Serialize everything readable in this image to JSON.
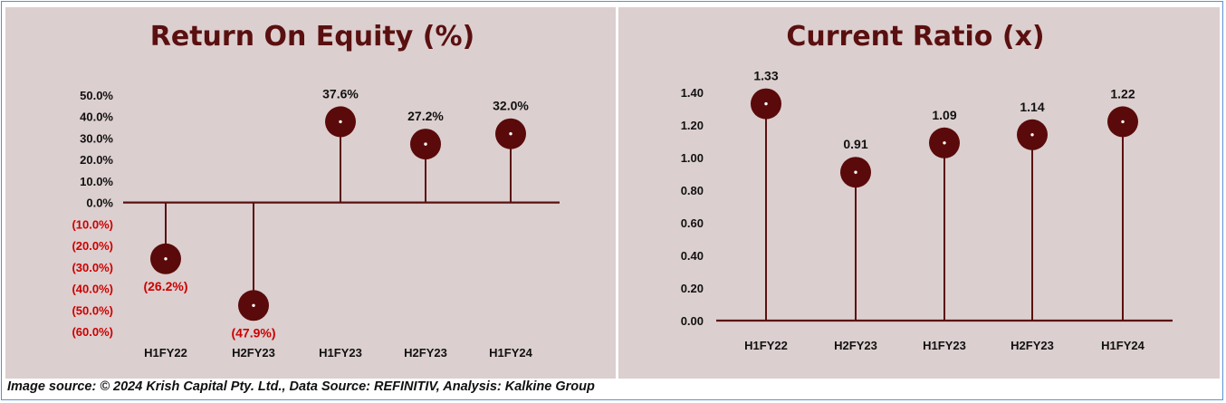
{
  "chart_data": [
    {
      "type": "lollipop",
      "title": "Return On Equity (%)",
      "categories": [
        "H1FY22",
        "H2FY23",
        "H1FY23",
        "H2FY23",
        "H1FY24"
      ],
      "values": [
        -26.2,
        -47.9,
        37.6,
        27.2,
        32.0
      ],
      "data_labels": [
        "(26.2%)",
        "(47.9%)",
        "37.6%",
        "27.2%",
        "32.0%"
      ],
      "y_ticks": [
        "50.0%",
        "40.0%",
        "30.0%",
        "20.0%",
        "10.0%",
        "0.0%",
        "(10.0%)",
        "(20.0%)",
        "(30.0%)",
        "(40.0%)",
        "(50.0%)",
        "(60.0%)"
      ],
      "ylim": [
        -60,
        50
      ],
      "negative_color": "#cc0000",
      "marker_color": "#5a0a0a",
      "grid": false
    },
    {
      "type": "lollipop",
      "title": "Current Ratio (x)",
      "categories": [
        "H1FY22",
        "H2FY23",
        "H1FY23",
        "H2FY23",
        "H1FY24"
      ],
      "values": [
        1.33,
        0.91,
        1.09,
        1.14,
        1.22
      ],
      "data_labels": [
        "1.33",
        "0.91",
        "1.09",
        "1.14",
        "1.22"
      ],
      "y_ticks": [
        "1.40",
        "1.20",
        "1.00",
        "0.80",
        "0.60",
        "0.40",
        "0.20",
        "0.00"
      ],
      "ylim": [
        0,
        1.4
      ],
      "marker_color": "#5a0a0a",
      "grid": false
    }
  ],
  "footer": {
    "source": "Image source: © 2024 Krish Capital Pty. Ltd., Data Source: REFINITIV, Analysis: Kalkine Group"
  },
  "colors": {
    "panel_bg": "#dccfcf",
    "stem": "#5a1010",
    "title": "#5a1010",
    "frame_border": "#5b8fd6"
  }
}
